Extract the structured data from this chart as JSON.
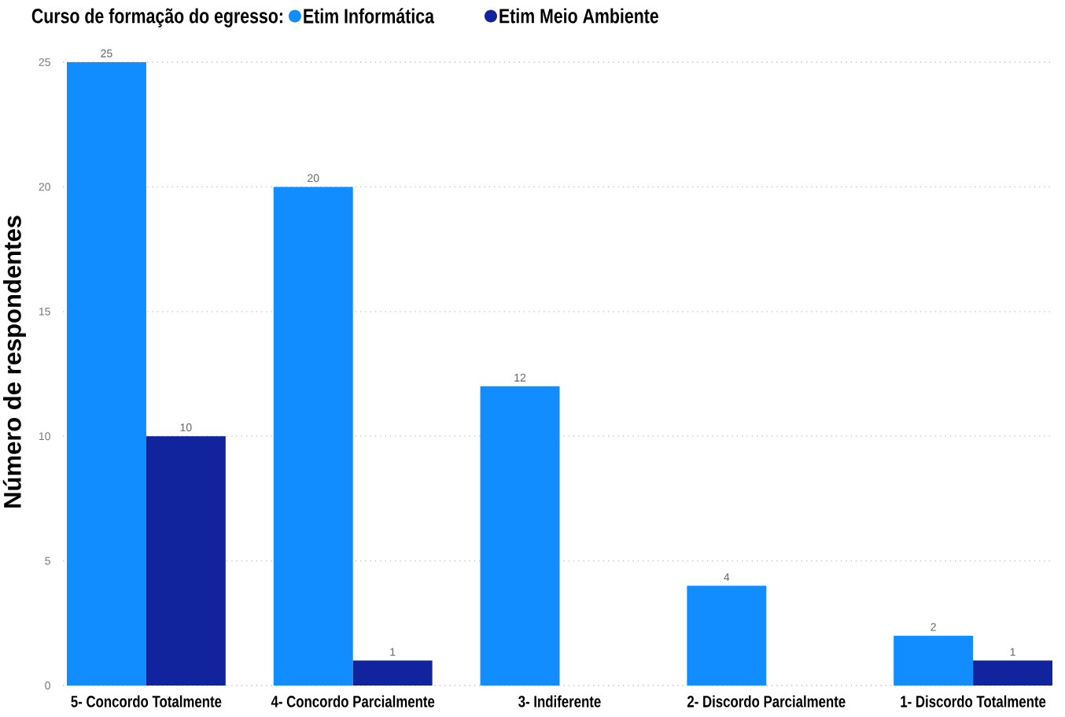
{
  "chart_data": {
    "type": "bar",
    "legend_title": "Curso de formação do egresso:",
    "ylabel": "Número de respondentes",
    "categories": [
      "5- Concordo Totalmente",
      "4- Concordo Parcialmente",
      "3- Indiferente",
      "2- Discordo Parcialmente",
      "1- Discordo Totalmente"
    ],
    "series": [
      {
        "name": "Etim Informática",
        "color": "#118dff",
        "values": [
          25,
          20,
          12,
          4,
          2
        ]
      },
      {
        "name": "Etim Meio Ambiente",
        "color": "#12239e",
        "values": [
          10,
          1,
          null,
          null,
          1
        ]
      }
    ],
    "ylim": [
      0,
      25
    ],
    "yticks": [
      0,
      5,
      10,
      15,
      20,
      25
    ],
    "grid": "y",
    "legend": "top left",
    "data_labels": true
  }
}
